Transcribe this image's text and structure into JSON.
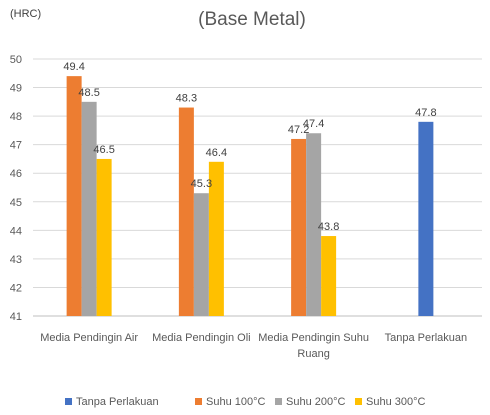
{
  "chart_data": {
    "type": "bar",
    "title": "(Base Metal)",
    "ylabel": "(HRC)",
    "xlabel": "",
    "ylim": [
      41,
      50
    ],
    "ytick_step": 1,
    "grid": true,
    "legend_position": "bottom",
    "categories": [
      [
        "Media Pendingin Air"
      ],
      [
        "Media Pendingin Oli"
      ],
      [
        "Media Pendingin Suhu",
        "Ruang"
      ],
      [
        "Tanpa Perlakuan"
      ]
    ],
    "series": [
      {
        "name": "Tanpa Perlakuan",
        "color": "#4472C4",
        "values": [
          null,
          null,
          null,
          47.8
        ]
      },
      {
        "name": "Suhu 100°C",
        "color": "#ED7D31",
        "values": [
          49.4,
          48.3,
          47.2,
          null
        ]
      },
      {
        "name": "Suhu 200°C",
        "color": "#A5A5A5",
        "values": [
          48.5,
          45.3,
          47.4,
          null
        ]
      },
      {
        "name": "Suhu 300°C",
        "color": "#FFC000",
        "values": [
          46.5,
          46.4,
          43.8,
          null
        ]
      }
    ],
    "data_labels": true
  }
}
